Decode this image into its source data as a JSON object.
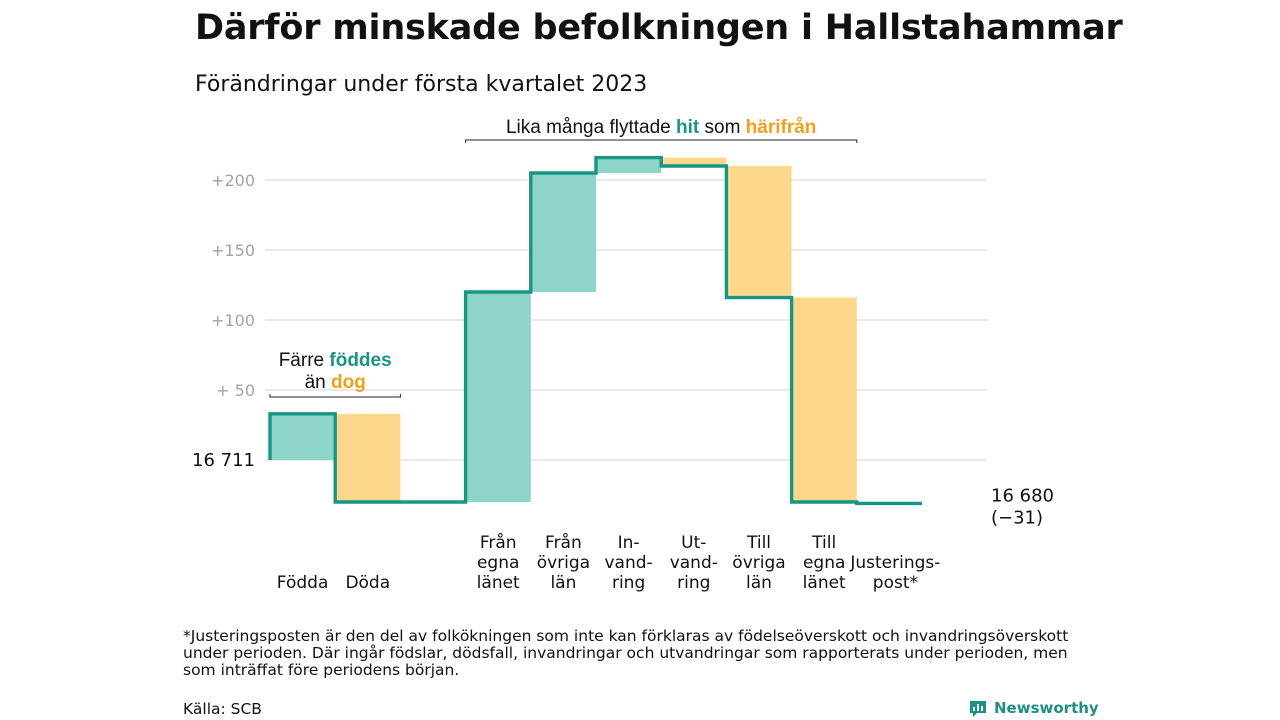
{
  "page": {
    "title": "Därför minskade befolkningen i Hallstahammar",
    "subtitle": "Förändringar under första kvartalet 2023",
    "footnote": "*Justeringsposten är den del av folkökningen som inte kan förklaras av födelseöverskott och invandringsöverskott under perioden. Där ingår födslar, dödsfall, invandringar och utvandringar som rapporterats under perioden, men som inträffat före periodens början.",
    "source": "Källa: SCB",
    "brand": "Newsworthy"
  },
  "colors": {
    "teal": "#1a9584",
    "teal_fill": "#8dd5cb",
    "orange_fill": "#fcd78c",
    "orange_text": "#f29f1d",
    "grid": "#dddddd",
    "tick_text": "#a3a3a3"
  },
  "chart_data": {
    "type": "waterfall",
    "start_value": 16711,
    "start_label": "16 711",
    "end_value": 16680,
    "end_label": "16 680",
    "end_change_label": "(−31)",
    "yticks": [
      {
        "value": 50,
        "label": "+ 50"
      },
      {
        "value": 100,
        "label": "+100"
      },
      {
        "value": 150,
        "label": "+150"
      },
      {
        "value": 200,
        "label": "+200"
      }
    ],
    "ylim": [
      -40,
      218
    ],
    "grid": true,
    "steps": [
      {
        "key": "fodda",
        "label": [
          "Födda"
        ],
        "delta": 33,
        "kind": "in"
      },
      {
        "key": "doda",
        "label": [
          "Döda"
        ],
        "delta": -63,
        "kind": "out"
      },
      {
        "key": "gap",
        "label": [],
        "delta": 0,
        "kind": "none"
      },
      {
        "key": "fran-egna-lanet",
        "label": [
          "Från",
          "egna",
          "länet"
        ],
        "delta": 150,
        "kind": "in"
      },
      {
        "key": "fran-ovriga-lan",
        "label": [
          "Från",
          "övriga",
          "län"
        ],
        "delta": 85,
        "kind": "in"
      },
      {
        "key": "invandring",
        "label": [
          "In-",
          "vand-",
          "ring"
        ],
        "delta": 11,
        "kind": "in"
      },
      {
        "key": "utvandring",
        "label": [
          "Ut-",
          "vand-",
          "ring"
        ],
        "delta": -6,
        "kind": "out"
      },
      {
        "key": "till-ovriga-lan",
        "label": [
          "Till",
          "övriga",
          "län"
        ],
        "delta": -94,
        "kind": "out"
      },
      {
        "key": "till-egna-lanet",
        "label": [
          "Till",
          "egna",
          "länet"
        ],
        "delta": -146,
        "kind": "out"
      },
      {
        "key": "justeringspost",
        "label": [
          "Justerings-",
          "post*"
        ],
        "delta": -1,
        "kind": "none"
      }
    ],
    "annotations": [
      {
        "key": "births",
        "line1": [
          "Färre ",
          "föddes"
        ],
        "line2": [
          "än ",
          "dog"
        ],
        "from_step": 0,
        "to_step": 1
      },
      {
        "key": "migration",
        "line1": [
          "Lika många flyttade ",
          "hit",
          " som ",
          "härifrån"
        ],
        "from_step": 3,
        "to_step": 8
      }
    ]
  }
}
